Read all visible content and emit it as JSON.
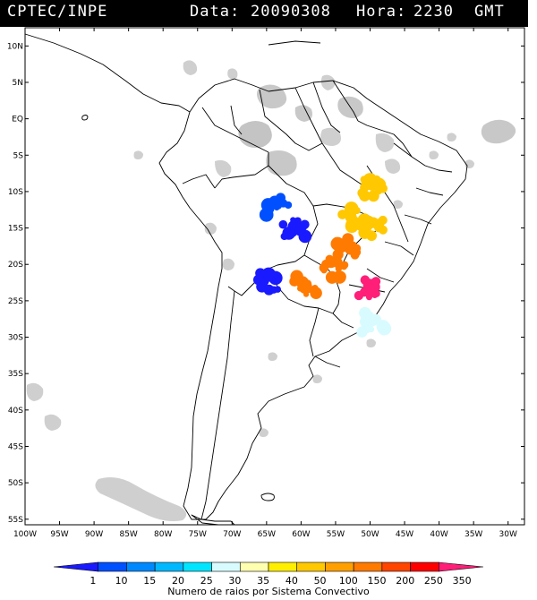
{
  "header": {
    "agency": "CPTEC/INPE",
    "date_label": "Data:",
    "date": "20090308",
    "hour_label": "Hora:",
    "hour": "2230",
    "tz": "GMT"
  },
  "lat_ticks": [
    "10N",
    "5N",
    "EQ",
    "5S",
    "10S",
    "15S",
    "20S",
    "25S",
    "30S",
    "35S",
    "40S",
    "45S",
    "50S",
    "55S"
  ],
  "lon_ticks": [
    "100W",
    "95W",
    "90W",
    "85W",
    "80W",
    "75W",
    "70W",
    "65W",
    "60W",
    "55W",
    "50W",
    "45W",
    "40W",
    "35W",
    "30W"
  ],
  "colorbar": {
    "title": "Numero de raios por Sistema Convectivo",
    "labels": [
      "1",
      "10",
      "15",
      "20",
      "25",
      "30",
      "35",
      "40",
      "50",
      "100",
      "150",
      "200",
      "250",
      "350"
    ],
    "colors": [
      "#1a1aff",
      "#0050ff",
      "#0088ff",
      "#00b8ff",
      "#00e5ff",
      "#d8fbff",
      "#ffffb0",
      "#ffee00",
      "#ffc800",
      "#ffa000",
      "#ff7a00",
      "#ff4500",
      "#ff0000",
      "#ff1e78"
    ]
  },
  "systems": [
    {
      "id": "bolivia-north",
      "bin": 1,
      "lon": -63.5,
      "lat": -12.0
    },
    {
      "id": "bolivia-east",
      "bin": 0,
      "lon": -61.0,
      "lat": -15.0
    },
    {
      "id": "argentina-northwest",
      "bin": 0,
      "lon": -64.5,
      "lat": -22.5
    },
    {
      "id": "mato-grosso-north",
      "bin": 8,
      "lon": -49.5,
      "lat": -9.5
    },
    {
      "id": "mato-grosso-center",
      "bin": 8,
      "lon": -52.5,
      "lat": -13.5
    },
    {
      "id": "goias",
      "bin": 8,
      "lon": -49.5,
      "lat": -15.0
    },
    {
      "id": "mato-grosso-south",
      "bin": 10,
      "lon": -53.5,
      "lat": -17.5
    },
    {
      "id": "mato-grosso-do-sul",
      "bin": 10,
      "lon": -55.0,
      "lat": -20.5
    },
    {
      "id": "paraguay",
      "bin": 10,
      "lon": -59.5,
      "lat": -23.0
    },
    {
      "id": "sao-paulo-parana",
      "bin": 13,
      "lon": -50.0,
      "lat": -23.5
    },
    {
      "id": "santa-catarina",
      "bin": 5,
      "lon": -49.5,
      "lat": -28.0
    }
  ]
}
